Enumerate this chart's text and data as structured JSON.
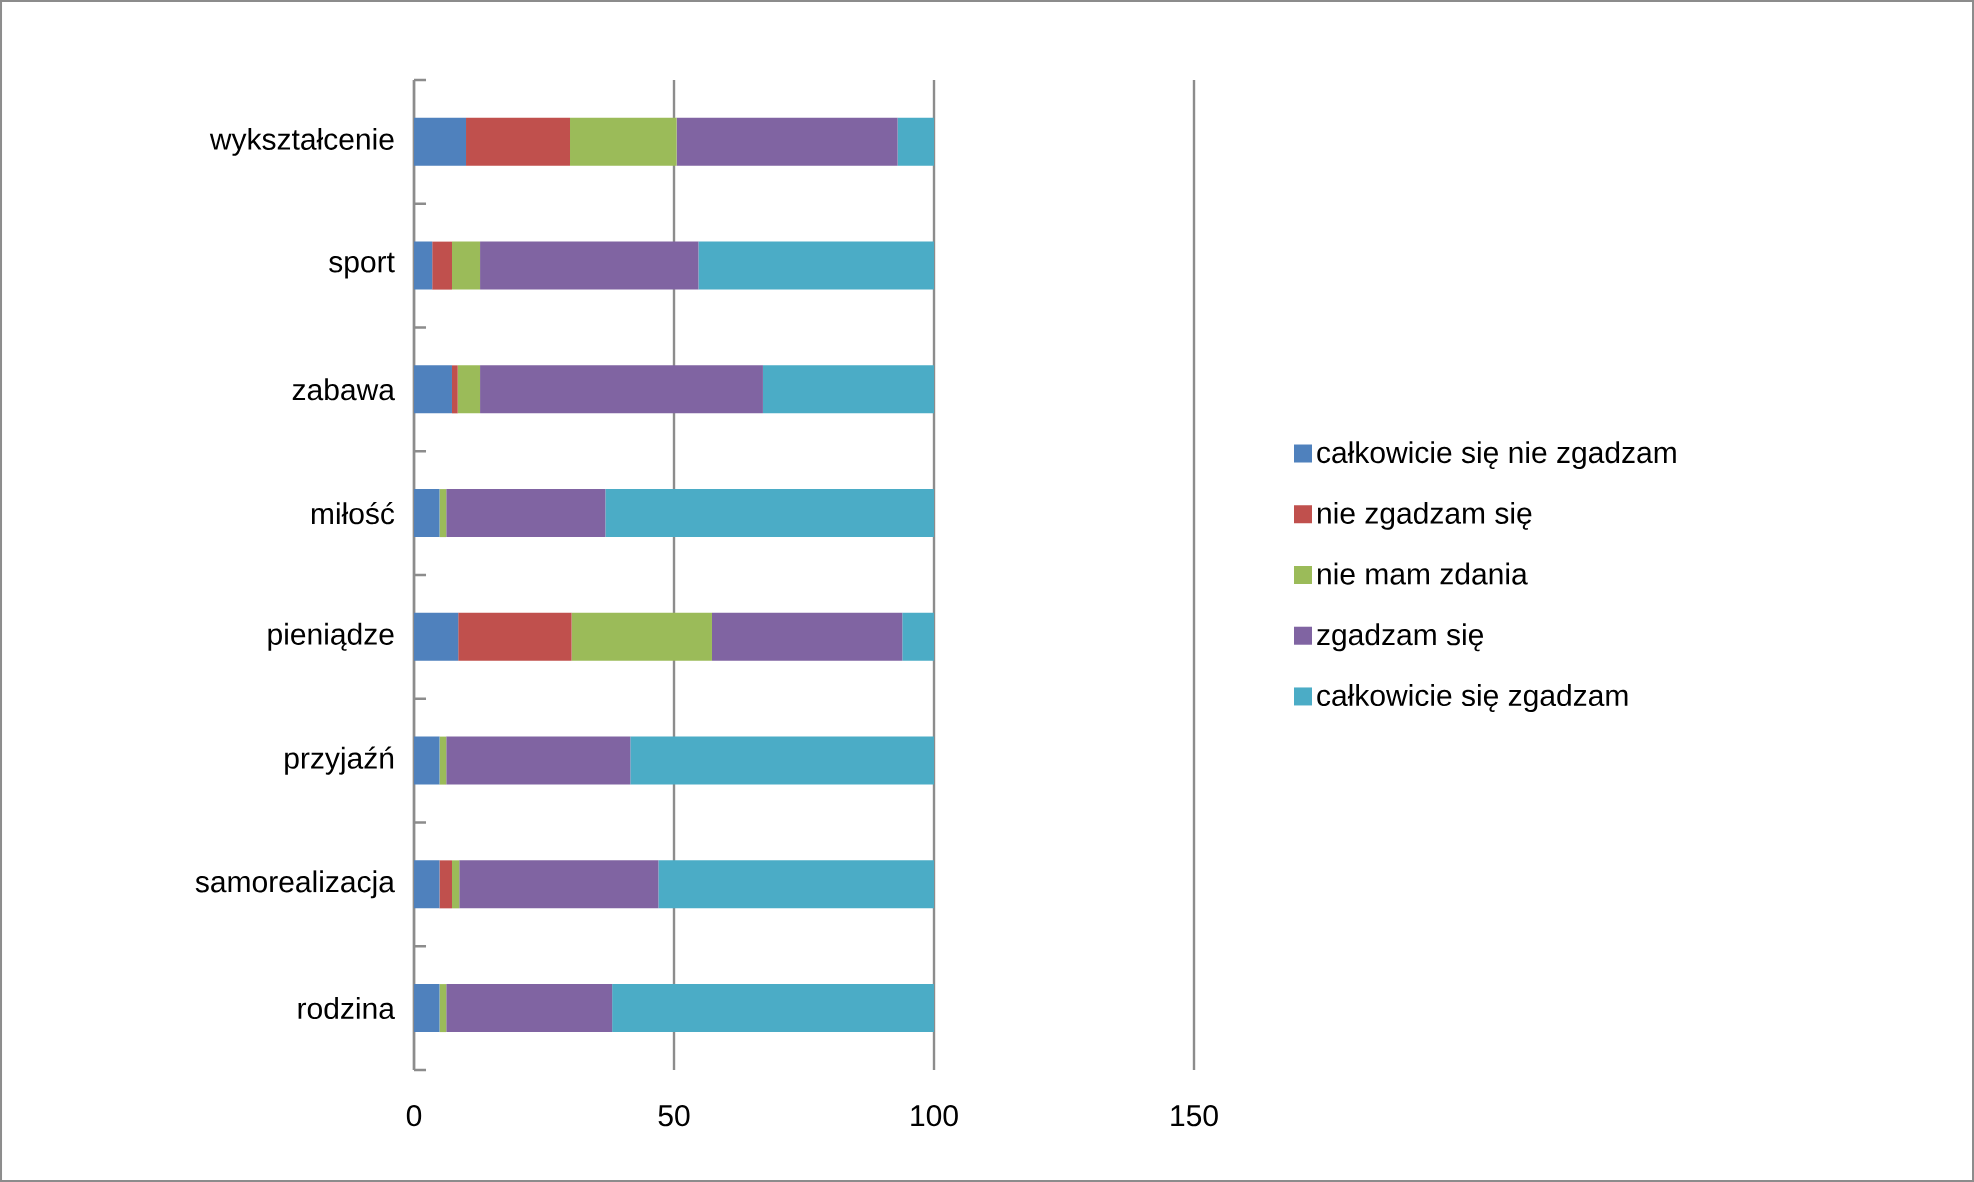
{
  "chart_data": {
    "type": "bar",
    "orientation": "horizontal",
    "stacked": true,
    "categories": [
      "wykształcenie",
      "sport",
      "zabawa",
      "miłość",
      "pieniądze",
      "przyjaźń",
      "samorealizacja",
      "rodzina"
    ],
    "series": [
      {
        "name": "całkowicie się nie zgadzam",
        "color": "#4f81bd",
        "values": [
          10,
          3.5,
          7.3,
          4.9,
          8.5,
          4.9,
          4.9,
          4.9
        ]
      },
      {
        "name": "nie zgadzam się",
        "color": "#c0504d",
        "values": [
          20,
          3.8,
          1.1,
          0,
          21.8,
          0,
          2.4,
          0
        ]
      },
      {
        "name": "nie mam zdania",
        "color": "#9bbb59",
        "values": [
          20.5,
          5.4,
          4.3,
          1.3,
          27,
          1.3,
          1.4,
          1.3
        ]
      },
      {
        "name": "zgadzam się",
        "color": "#8064a2",
        "values": [
          42.5,
          42,
          54.4,
          30.6,
          36.6,
          35.4,
          38.3,
          31.9
        ]
      },
      {
        "name": "całkowicie się zgadzam",
        "color": "#4bacc6",
        "values": [
          7,
          45.3,
          32.9,
          63.2,
          6.1,
          58.4,
          53,
          61.9
        ]
      }
    ],
    "xlim": [
      0,
      150
    ],
    "xticks": [
      0,
      50,
      100,
      150
    ],
    "grid": "x",
    "legend": "right"
  }
}
